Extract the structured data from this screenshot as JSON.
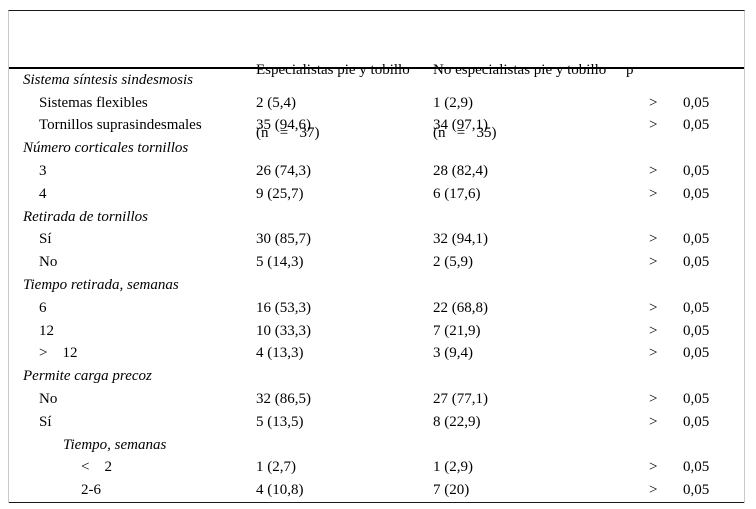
{
  "table": {
    "columns": [
      {
        "line1": "",
        "line2": ""
      },
      {
        "line1": "Especialistas pie y tobillo",
        "line2": "(n   =   37)"
      },
      {
        "line1": "No especialistas pie y tobillo",
        "line2": "(n   =   35)"
      },
      {
        "line1": "p",
        "line2": ""
      }
    ],
    "rows": [
      {
        "label": "Sistema síntesis sindesmosis",
        "indent": 0,
        "italic": true,
        "esp": "",
        "noesp": "",
        "p_sign": "",
        "p_value": ""
      },
      {
        "label": "Sistemas flexibles",
        "indent": 1,
        "italic": false,
        "esp": "2 (5,4)",
        "noesp": "1 (2,9)",
        "p_sign": ">",
        "p_value": "0,05"
      },
      {
        "label": "Tornillos suprasindesmales",
        "indent": 1,
        "italic": false,
        "esp": "35 (94,6)",
        "noesp": "34 (97,1)",
        "p_sign": ">",
        "p_value": "0,05"
      },
      {
        "label": "Número corticales tornillos",
        "indent": 0,
        "italic": true,
        "esp": "",
        "noesp": "",
        "p_sign": "",
        "p_value": ""
      },
      {
        "label": "3",
        "indent": 1,
        "italic": false,
        "esp": "26 (74,3)",
        "noesp": "28 (82,4)",
        "p_sign": ">",
        "p_value": "0,05"
      },
      {
        "label": "4",
        "indent": 1,
        "italic": false,
        "esp": "9 (25,7)",
        "noesp": "6 (17,6)",
        "p_sign": ">",
        "p_value": "0,05"
      },
      {
        "label": "Retirada de tornillos",
        "indent": 0,
        "italic": true,
        "esp": "",
        "noesp": "",
        "p_sign": "",
        "p_value": ""
      },
      {
        "label": "Sí",
        "indent": 1,
        "italic": false,
        "esp": "30 (85,7)",
        "noesp": "32 (94,1)",
        "p_sign": ">",
        "p_value": "0,05"
      },
      {
        "label": "No",
        "indent": 1,
        "italic": false,
        "esp": "5 (14,3)",
        "noesp": "2 (5,9)",
        "p_sign": ">",
        "p_value": "0,05"
      },
      {
        "label": "Tiempo retirada, semanas",
        "indent": 0,
        "italic": true,
        "esp": "",
        "noesp": "",
        "p_sign": "",
        "p_value": ""
      },
      {
        "label": "6",
        "indent": 1,
        "italic": false,
        "esp": "16 (53,3)",
        "noesp": "22 (68,8)",
        "p_sign": ">",
        "p_value": "0,05"
      },
      {
        "label": "12",
        "indent": 1,
        "italic": false,
        "esp": "10 (33,3)",
        "noesp": "7 (21,9)",
        "p_sign": ">",
        "p_value": "0,05"
      },
      {
        "label": ">    12",
        "indent": 1,
        "italic": false,
        "esp": "4 (13,3)",
        "noesp": "3 (9,4)",
        "p_sign": ">",
        "p_value": "0,05"
      },
      {
        "label": "Permite carga precoz",
        "indent": 0,
        "italic": true,
        "esp": "",
        "noesp": "",
        "p_sign": "",
        "p_value": ""
      },
      {
        "label": "No",
        "indent": 1,
        "italic": false,
        "esp": "32 (86,5)",
        "noesp": "27 (77,1)",
        "p_sign": ">",
        "p_value": "0,05"
      },
      {
        "label": "Sí",
        "indent": 1,
        "italic": false,
        "esp": "5 (13,5)",
        "noesp": "8 (22,9)",
        "p_sign": ">",
        "p_value": "0,05"
      },
      {
        "label": "Tiempo, semanas",
        "indent": 2,
        "italic": true,
        "esp": "",
        "noesp": "",
        "p_sign": "",
        "p_value": ""
      },
      {
        "label": "<    2",
        "indent": 3,
        "italic": false,
        "esp": "1 (2,7)",
        "noesp": "1 (2,9)",
        "p_sign": ">",
        "p_value": "0,05"
      },
      {
        "label": "2-6",
        "indent": 3,
        "italic": false,
        "esp": "4 (10,8)",
        "noesp": "7 (20)",
        "p_sign": ">",
        "p_value": "0,05"
      }
    ]
  }
}
